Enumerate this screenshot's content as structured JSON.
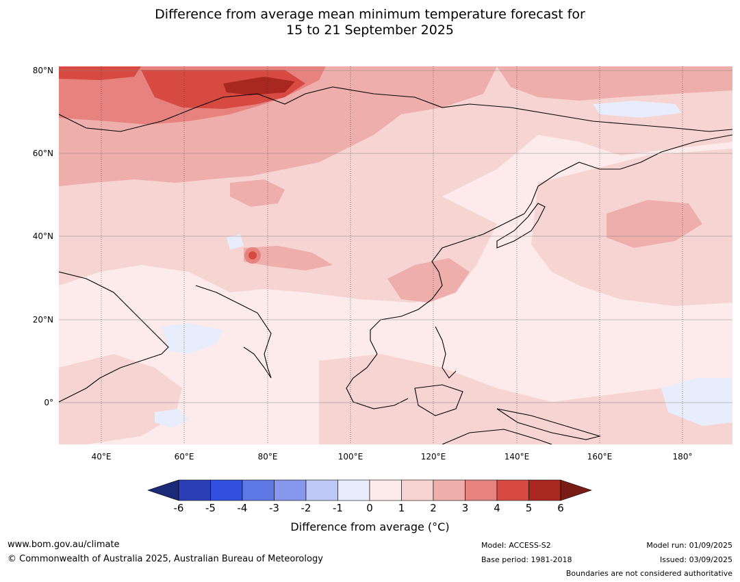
{
  "title": {
    "line1": "Difference from average mean minimum temperature forecast for",
    "line2": "15 to 21 September 2025"
  },
  "map": {
    "lat_labels": [
      "80°N",
      "60°N",
      "40°N",
      "20°N",
      "0°"
    ],
    "lon_labels": [
      "40°E",
      "60°E",
      "80°E",
      "100°E",
      "120°E",
      "140°E",
      "160°E",
      "180°"
    ],
    "extent": {
      "lon_min": 30,
      "lon_max": 192,
      "lat_min": -10,
      "lat_max": 81
    }
  },
  "colorbar": {
    "ticks": [
      "-6",
      "-5",
      "-4",
      "-3",
      "-2",
      "-1",
      "0",
      "1",
      "2",
      "3",
      "4",
      "5",
      "6"
    ],
    "colors": [
      "#1b2a78",
      "#2a3fb5",
      "#3150e0",
      "#5e78e6",
      "#8798ec",
      "#bec8f4",
      "#e8edfb",
      "#fcebea",
      "#f6d4d2",
      "#eeaeab",
      "#e6837e",
      "#d74a41",
      "#a8281f",
      "#7a1c16"
    ],
    "label": "Difference from average (°C)"
  },
  "footer": {
    "website": "www.bom.gov.au/climate",
    "copyright": "© Commonwealth of Australia 2025, Australian Bureau of Meteorology",
    "model": "Model: ACCESS-S2",
    "base_period": "Base period: 1981-2018",
    "model_run": "Model run: 01/09/2025",
    "issued": "Issued: 03/09/2025",
    "disclaimer": "Boundaries are not considered authoritative"
  }
}
